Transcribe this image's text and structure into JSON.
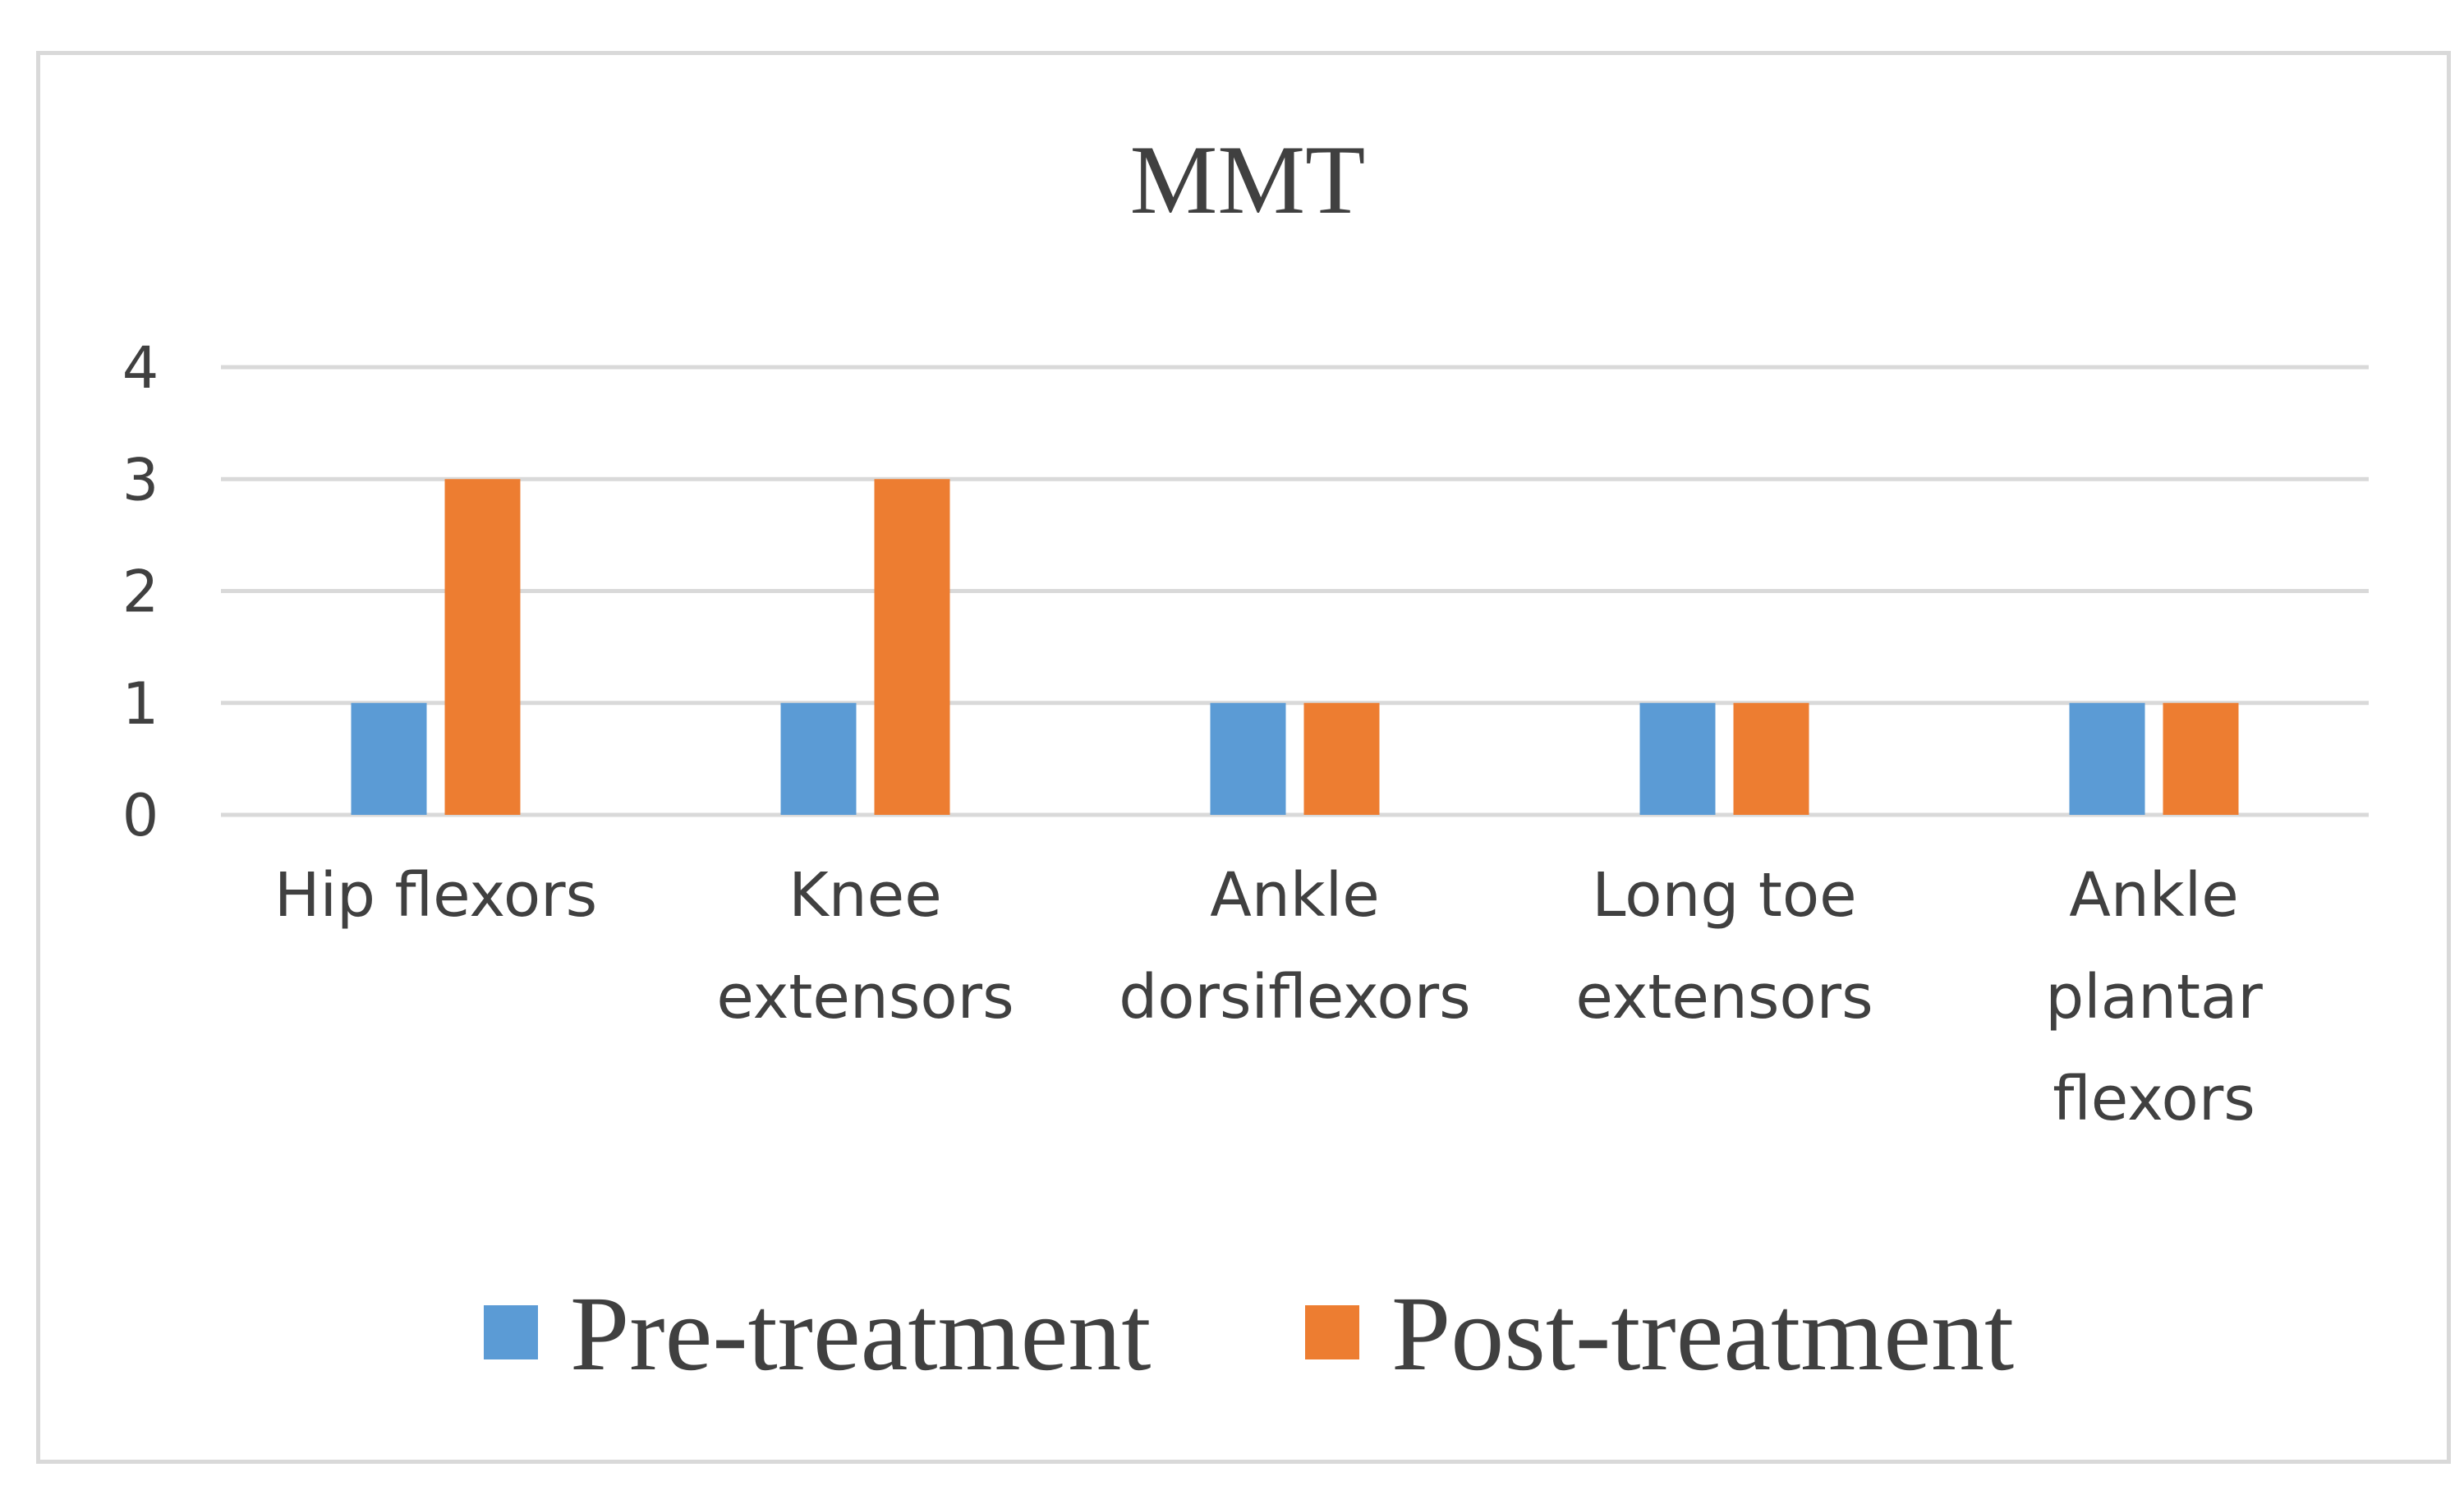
{
  "chart_data": {
    "type": "bar",
    "title": "MMT",
    "xlabel": "",
    "ylabel": "",
    "categories": [
      [
        "Hip flexors"
      ],
      [
        "Knee",
        "extensors"
      ],
      [
        "Ankle",
        "dorsiflexors"
      ],
      [
        "Long toe",
        "extensors"
      ],
      [
        "Ankle",
        "plantar",
        "flexors"
      ]
    ],
    "series": [
      {
        "name": "Pre-treatment",
        "color": "#5b9bd5",
        "values": [
          1,
          1,
          1,
          1,
          1
        ]
      },
      {
        "name": "Post-treatment",
        "color": "#ed7d31",
        "values": [
          3,
          3,
          1,
          1,
          1
        ]
      }
    ],
    "ylim": [
      0,
      4
    ],
    "yticks": [
      "0",
      "1",
      "2",
      "3",
      "4"
    ],
    "grid": true,
    "gridColor": "#d9d9d9",
    "legend": "bottom"
  }
}
